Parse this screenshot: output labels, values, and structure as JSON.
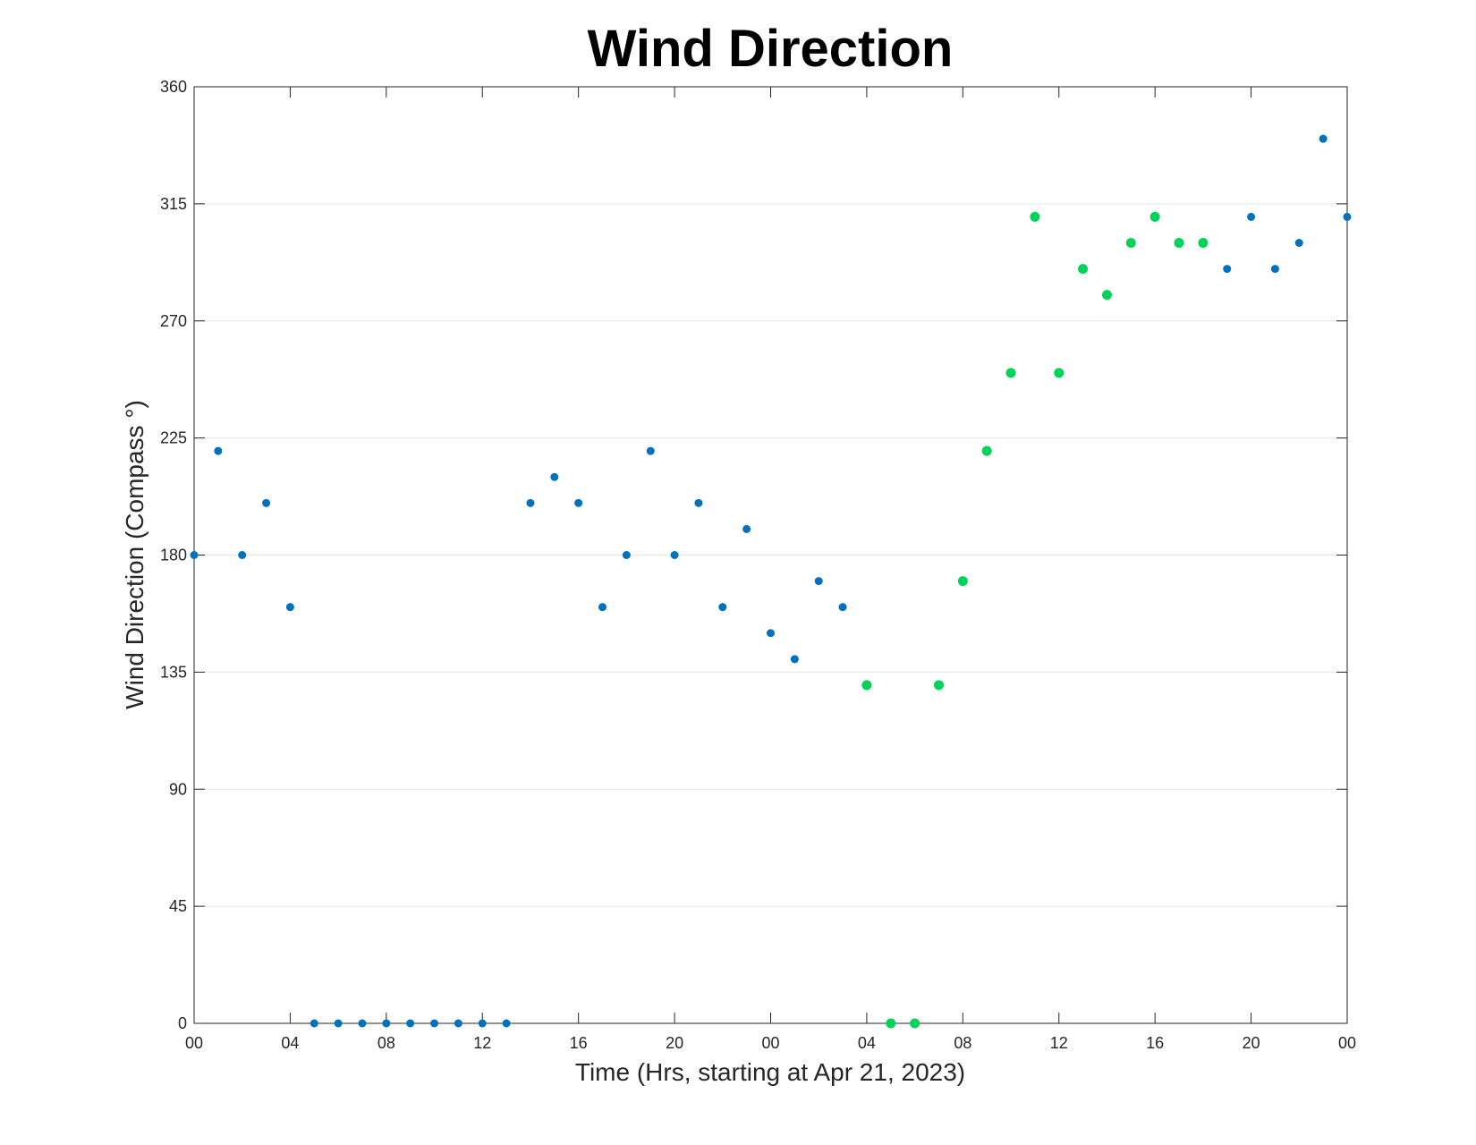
{
  "chart_data": {
    "type": "scatter",
    "title": "Wind Direction",
    "xlabel": "Time (Hrs, starting at Apr 21, 2023)",
    "ylabel": "Wind Direction (Compass °)",
    "x_unit": "hours",
    "xlim": [
      0,
      48
    ],
    "ylim": [
      0,
      360
    ],
    "x_ticks": [
      {
        "value": 0,
        "label": "00"
      },
      {
        "value": 4,
        "label": "04"
      },
      {
        "value": 8,
        "label": "08"
      },
      {
        "value": 12,
        "label": "12"
      },
      {
        "value": 16,
        "label": "16"
      },
      {
        "value": 20,
        "label": "20"
      },
      {
        "value": 24,
        "label": "00"
      },
      {
        "value": 28,
        "label": "04"
      },
      {
        "value": 32,
        "label": "08"
      },
      {
        "value": 36,
        "label": "12"
      },
      {
        "value": 40,
        "label": "16"
      },
      {
        "value": 44,
        "label": "20"
      },
      {
        "value": 48,
        "label": "00"
      }
    ],
    "y_ticks": [
      0,
      45,
      90,
      135,
      180,
      225,
      270,
      315,
      360
    ],
    "grid": "horizontal",
    "legend": "none",
    "series": [
      {
        "color": "#0072bd",
        "points": [
          {
            "x": 0,
            "y": 180
          },
          {
            "x": 1,
            "y": 220
          },
          {
            "x": 2,
            "y": 180
          },
          {
            "x": 3,
            "y": 200
          },
          {
            "x": 4,
            "y": 160
          },
          {
            "x": 5,
            "y": 0
          },
          {
            "x": 6,
            "y": 0
          },
          {
            "x": 7,
            "y": 0
          },
          {
            "x": 8,
            "y": 0
          },
          {
            "x": 9,
            "y": 0
          },
          {
            "x": 10,
            "y": 0
          },
          {
            "x": 11,
            "y": 0
          },
          {
            "x": 12,
            "y": 0
          },
          {
            "x": 13,
            "y": 0
          },
          {
            "x": 14,
            "y": 200
          },
          {
            "x": 15,
            "y": 210
          },
          {
            "x": 16,
            "y": 200
          },
          {
            "x": 17,
            "y": 160
          },
          {
            "x": 18,
            "y": 180
          },
          {
            "x": 19,
            "y": 220
          },
          {
            "x": 20,
            "y": 180
          },
          {
            "x": 21,
            "y": 200
          },
          {
            "x": 22,
            "y": 160
          },
          {
            "x": 23,
            "y": 190
          },
          {
            "x": 24,
            "y": 150
          },
          {
            "x": 25,
            "y": 140
          },
          {
            "x": 26,
            "y": 170
          },
          {
            "x": 27,
            "y": 160
          },
          {
            "x": 43,
            "y": 290
          },
          {
            "x": 44,
            "y": 310
          },
          {
            "x": 45,
            "y": 290
          },
          {
            "x": 46,
            "y": 300
          },
          {
            "x": 47,
            "y": 340
          },
          {
            "x": 48,
            "y": 310
          }
        ]
      },
      {
        "color": "#00d25a",
        "points": [
          {
            "x": 28,
            "y": 130
          },
          {
            "x": 29,
            "y": 0
          },
          {
            "x": 30,
            "y": 0
          },
          {
            "x": 31,
            "y": 130
          },
          {
            "x": 32,
            "y": 170
          },
          {
            "x": 33,
            "y": 220
          },
          {
            "x": 34,
            "y": 250
          },
          {
            "x": 35,
            "y": 310
          },
          {
            "x": 36,
            "y": 250
          },
          {
            "x": 37,
            "y": 290
          },
          {
            "x": 38,
            "y": 280
          },
          {
            "x": 39,
            "y": 300
          },
          {
            "x": 40,
            "y": 310
          },
          {
            "x": 41,
            "y": 300
          },
          {
            "x": 42,
            "y": 300
          }
        ]
      }
    ]
  }
}
